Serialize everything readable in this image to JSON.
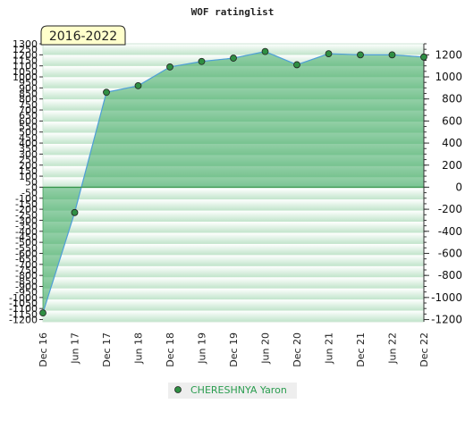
{
  "chart_data": {
    "type": "area",
    "title": "WOF ratinglist",
    "badge": "2016-2022",
    "x": [
      "Dec 16",
      "Jun 17",
      "Dec 17",
      "Jun 18",
      "Dec 18",
      "Jun 19",
      "Dec 19",
      "Jun 20",
      "Dec 20",
      "Jun 21",
      "Dec 21",
      "Jun 22",
      "Dec 22"
    ],
    "series": [
      {
        "name": "CHERESHNYA Yaron",
        "values": [
          -1140,
          -230,
          860,
          920,
          1090,
          1140,
          1170,
          1230,
          1110,
          1210,
          1200,
          1200,
          1180
        ]
      }
    ],
    "ylim": [
      -1220,
      1300
    ],
    "y_ticks_left": [
      1300,
      1200,
      1100,
      1000,
      900,
      800,
      700,
      600,
      500,
      400,
      300,
      200,
      100,
      0,
      -100,
      -200,
      -300,
      -400,
      -500,
      -600,
      -700,
      -800,
      -900,
      -1000,
      -1100,
      -1200
    ],
    "y_ticks_left_extra": [
      1250,
      1150,
      1050,
      950,
      850,
      750,
      650,
      550,
      450,
      350,
      250,
      150,
      50,
      -50,
      -150,
      -250,
      -350,
      -450,
      -550,
      -650,
      -750,
      -850,
      -950,
      -1050,
      -1150
    ],
    "y_ticks_right": [
      1200,
      1000,
      800,
      600,
      400,
      200,
      0,
      -200,
      -400,
      -600,
      -800,
      -1000,
      -1200
    ],
    "grid": true,
    "legend_position": "bottom-center",
    "colors": {
      "line": "#4f9fd8",
      "fill": "#3aa85e",
      "marker": "#2f8f43",
      "badge_bg": "#ffffcc"
    }
  }
}
